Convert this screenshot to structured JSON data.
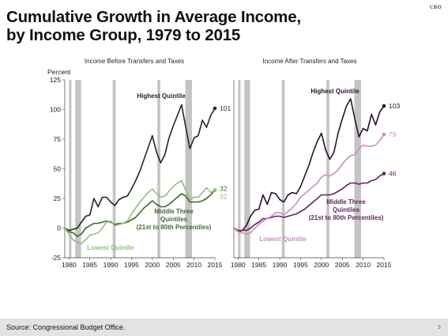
{
  "slide": {
    "title_line1": "Cumulative Growth in Average Income,",
    "title_line2": "by Income Group, 1979 to 2015",
    "brand": "CBO",
    "source": "Source: Congressional Budget Office.",
    "page_number": "3"
  },
  "colors": {
    "recession_band": "#c4c4c4",
    "left_highest": "#1e2a1e",
    "left_middle": "#3e6b2c",
    "left_lowest": "#8fbf7c",
    "right_highest": "#2b1030",
    "right_middle": "#61255f",
    "right_lowest": "#c98ec2"
  },
  "chart_data": [
    {
      "type": "line",
      "title": "Income Before Transfers and Taxes",
      "ylabel": "Percent",
      "xlim": [
        1979,
        2015
      ],
      "ylim": [
        -25,
        125
      ],
      "yticks": [
        -25,
        0,
        25,
        50,
        75,
        100,
        125
      ],
      "xticks": [
        1980,
        1985,
        1990,
        1995,
        2000,
        2005,
        2010,
        2015
      ],
      "recession_bands": [
        [
          1980,
          1980.6
        ],
        [
          1981.5,
          1982.9
        ],
        [
          1990.5,
          1991.2
        ],
        [
          2001.2,
          2001.9
        ],
        [
          2007.9,
          2009.5
        ]
      ],
      "series": [
        {
          "name": "Highest Quintile",
          "label": "Highest Quintile",
          "end_label": "101",
          "color_key": "left_highest",
          "x": [
            1979,
            1980,
            1981,
            1982,
            1983,
            1984,
            1985,
            1986,
            1987,
            1988,
            1989,
            1990,
            1991,
            1992,
            1993,
            1994,
            1995,
            1996,
            1997,
            1998,
            1999,
            2000,
            2001,
            2002,
            2003,
            2004,
            2005,
            2006,
            2007,
            2008,
            2009,
            2010,
            2011,
            2012,
            2013,
            2014,
            2015
          ],
          "y": [
            0,
            -2,
            -1,
            0,
            5,
            10,
            11,
            25,
            18,
            26,
            26,
            22,
            19,
            24,
            26,
            27,
            33,
            40,
            48,
            58,
            68,
            78,
            64,
            55,
            62,
            76,
            86,
            95,
            104,
            85,
            67,
            76,
            78,
            91,
            85,
            95,
            101
          ]
        },
        {
          "name": "Middle Three Quintiles (21st to 80th Percentiles)",
          "label": "Middle Three Quintiles (21st to 80th Percentiles)",
          "end_label": "32",
          "color_key": "left_middle",
          "x": [
            1979,
            1980,
            1981,
            1982,
            1983,
            1984,
            1985,
            1986,
            1987,
            1988,
            1989,
            1990,
            1991,
            1992,
            1993,
            1994,
            1995,
            1996,
            1997,
            1998,
            1999,
            2000,
            2001,
            2002,
            2003,
            2004,
            2005,
            2006,
            2007,
            2008,
            2009,
            2010,
            2011,
            2012,
            2013,
            2014,
            2015
          ],
          "y": [
            0,
            -3,
            -4,
            -7,
            -5,
            0,
            2,
            4,
            4,
            5,
            6,
            5,
            3,
            4,
            4,
            5,
            7,
            9,
            13,
            17,
            20,
            23,
            20,
            18,
            18,
            20,
            23,
            26,
            29,
            27,
            22,
            22,
            22,
            23,
            25,
            28,
            32
          ]
        },
        {
          "name": "Lowest Quintile",
          "label": "Lowest Quintile",
          "end_label": "32",
          "color_key": "left_lowest",
          "x": [
            1979,
            1980,
            1981,
            1982,
            1983,
            1984,
            1985,
            1986,
            1987,
            1988,
            1989,
            1990,
            1991,
            1992,
            1993,
            1994,
            1995,
            1996,
            1997,
            1998,
            1999,
            2000,
            2001,
            2002,
            2003,
            2004,
            2005,
            2006,
            2007,
            2008,
            2009,
            2010,
            2011,
            2012,
            2013,
            2014,
            2015
          ],
          "y": [
            0,
            -5,
            -10,
            -12,
            -13,
            -10,
            -6,
            -5,
            -4,
            0,
            5,
            6,
            2,
            3,
            4,
            6,
            12,
            17,
            22,
            26,
            30,
            33,
            29,
            26,
            27,
            31,
            35,
            38,
            40,
            32,
            24,
            26,
            26,
            30,
            34,
            30,
            32
          ]
        }
      ]
    },
    {
      "type": "line",
      "title": "Income After Transfers and Taxes",
      "xlim": [
        1979,
        2015
      ],
      "ylim": [
        -25,
        125
      ],
      "xticks": [
        1980,
        1985,
        1990,
        1995,
        2000,
        2005,
        2010,
        2015
      ],
      "recession_bands": [
        [
          1980,
          1980.6
        ],
        [
          1981.5,
          1982.9
        ],
        [
          1990.5,
          1991.2
        ],
        [
          2001.2,
          2001.9
        ],
        [
          2007.9,
          2009.5
        ]
      ],
      "series": [
        {
          "name": "Highest Quintile",
          "label": "Highest Quintile",
          "end_label": "103",
          "color_key": "right_highest",
          "x": [
            1979,
            1980,
            1981,
            1982,
            1983,
            1984,
            1985,
            1986,
            1987,
            1988,
            1989,
            1990,
            1991,
            1992,
            1993,
            1994,
            1995,
            1996,
            1997,
            1998,
            1999,
            2000,
            2001,
            2002,
            2003,
            2004,
            2005,
            2006,
            2007,
            2008,
            2009,
            2010,
            2011,
            2012,
            2013,
            2014,
            2015
          ],
          "y": [
            0,
            -3,
            -2,
            2,
            10,
            15,
            16,
            28,
            20,
            30,
            29,
            24,
            22,
            28,
            30,
            29,
            35,
            44,
            53,
            64,
            73,
            80,
            66,
            58,
            64,
            80,
            92,
            103,
            109,
            92,
            77,
            84,
            82,
            96,
            87,
            98,
            103
          ]
        },
        {
          "name": "Middle Three Quintiles (21st to 80th Percentiles)",
          "label": "Middle Three Quintiles (21st to 80th Percentiles)",
          "end_label": "46",
          "color_key": "right_middle",
          "x": [
            1979,
            1980,
            1981,
            1982,
            1983,
            1984,
            1985,
            1986,
            1987,
            1988,
            1989,
            1990,
            1991,
            1992,
            1993,
            1994,
            1995,
            1996,
            1997,
            1998,
            1999,
            2000,
            2001,
            2002,
            2003,
            2004,
            2005,
            2006,
            2007,
            2008,
            2009,
            2010,
            2011,
            2012,
            2013,
            2014,
            2015
          ],
          "y": [
            0,
            -2,
            -2,
            -2,
            0,
            3,
            5,
            8,
            8,
            9,
            10,
            10,
            9,
            10,
            11,
            12,
            14,
            16,
            19,
            22,
            25,
            28,
            28,
            28,
            29,
            31,
            33,
            36,
            38,
            38,
            37,
            38,
            38,
            40,
            41,
            44,
            46
          ]
        },
        {
          "name": "Lowest Quintile",
          "label": "Lowest Quintile",
          "end_label": "79",
          "color_key": "right_lowest",
          "x": [
            1979,
            1980,
            1981,
            1982,
            1983,
            1984,
            1985,
            1986,
            1987,
            1988,
            1989,
            1990,
            1991,
            1992,
            1993,
            1994,
            1995,
            1996,
            1997,
            1998,
            1999,
            2000,
            2001,
            2002,
            2003,
            2004,
            2005,
            2006,
            2007,
            2008,
            2009,
            2010,
            2011,
            2012,
            2013,
            2014,
            2015
          ],
          "y": [
            0,
            -3,
            -4,
            -5,
            -4,
            0,
            3,
            6,
            8,
            10,
            13,
            13,
            11,
            14,
            17,
            21,
            26,
            29,
            32,
            35,
            38,
            43,
            45,
            44,
            46,
            49,
            54,
            58,
            61,
            62,
            67,
            70,
            69,
            69,
            70,
            74,
            79
          ]
        }
      ]
    }
  ]
}
